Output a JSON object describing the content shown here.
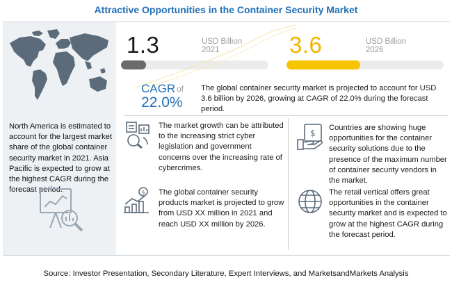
{
  "title": "Attractive Opportunities in the Container Security Market",
  "left_panel": {
    "text": "North America is estimated to account for the largest market share of the global container security market in 2021. Asia Pacific is expected to grow at the highest CAGR during the forecast period."
  },
  "values": {
    "v2021": {
      "number": "1.3",
      "unit_line1": "USD Billion",
      "unit_line2": "2021",
      "bar_fraction": 0.17,
      "bar_color": "#6b6b6b"
    },
    "v2026": {
      "number": "3.6",
      "unit_line1": "USD Billion",
      "unit_line2": "2026",
      "bar_fraction": 0.47,
      "bar_color": "#f7c400"
    }
  },
  "cagr": {
    "label": "CAGR",
    "of": "of",
    "value": "22.0%"
  },
  "market_statement": "The global  container security market is projected to account for USD 3.6 billion  by 2026, growing at CAGR of 22.0% during the forecast period.",
  "items": [
    {
      "text": "The market growth can be attributed to the increasing  strict cyber legislation and government concerns over the increasing rate of cybercrimes."
    },
    {
      "text": "Countries are showing huge opportunities for the container security solutions due to the presence of the maximum number of container security vendors in the market."
    },
    {
      "text": "The global container security products market is projected to grow from USD XX million in 2021 and reach USD XX million by 2026."
    },
    {
      "text": "The retail vertical offers great opportunities in the container security market and is expected to grow at the highest CAGR during the forecast period."
    }
  ],
  "source": "Source: Investor Presentation, Secondary Literature, Expert Interviews, and MarketsandMarkets Analysis",
  "colors": {
    "title_blue": "#1f6fb6",
    "accent_yellow": "#f7c400",
    "panel_gray": "#eef1f4"
  },
  "icons": [
    "world-map-icon",
    "analytics-magnifier-icon",
    "legislation-chart-icon",
    "money-hand-icon",
    "product-growth-icon",
    "globe-retail-icon"
  ]
}
